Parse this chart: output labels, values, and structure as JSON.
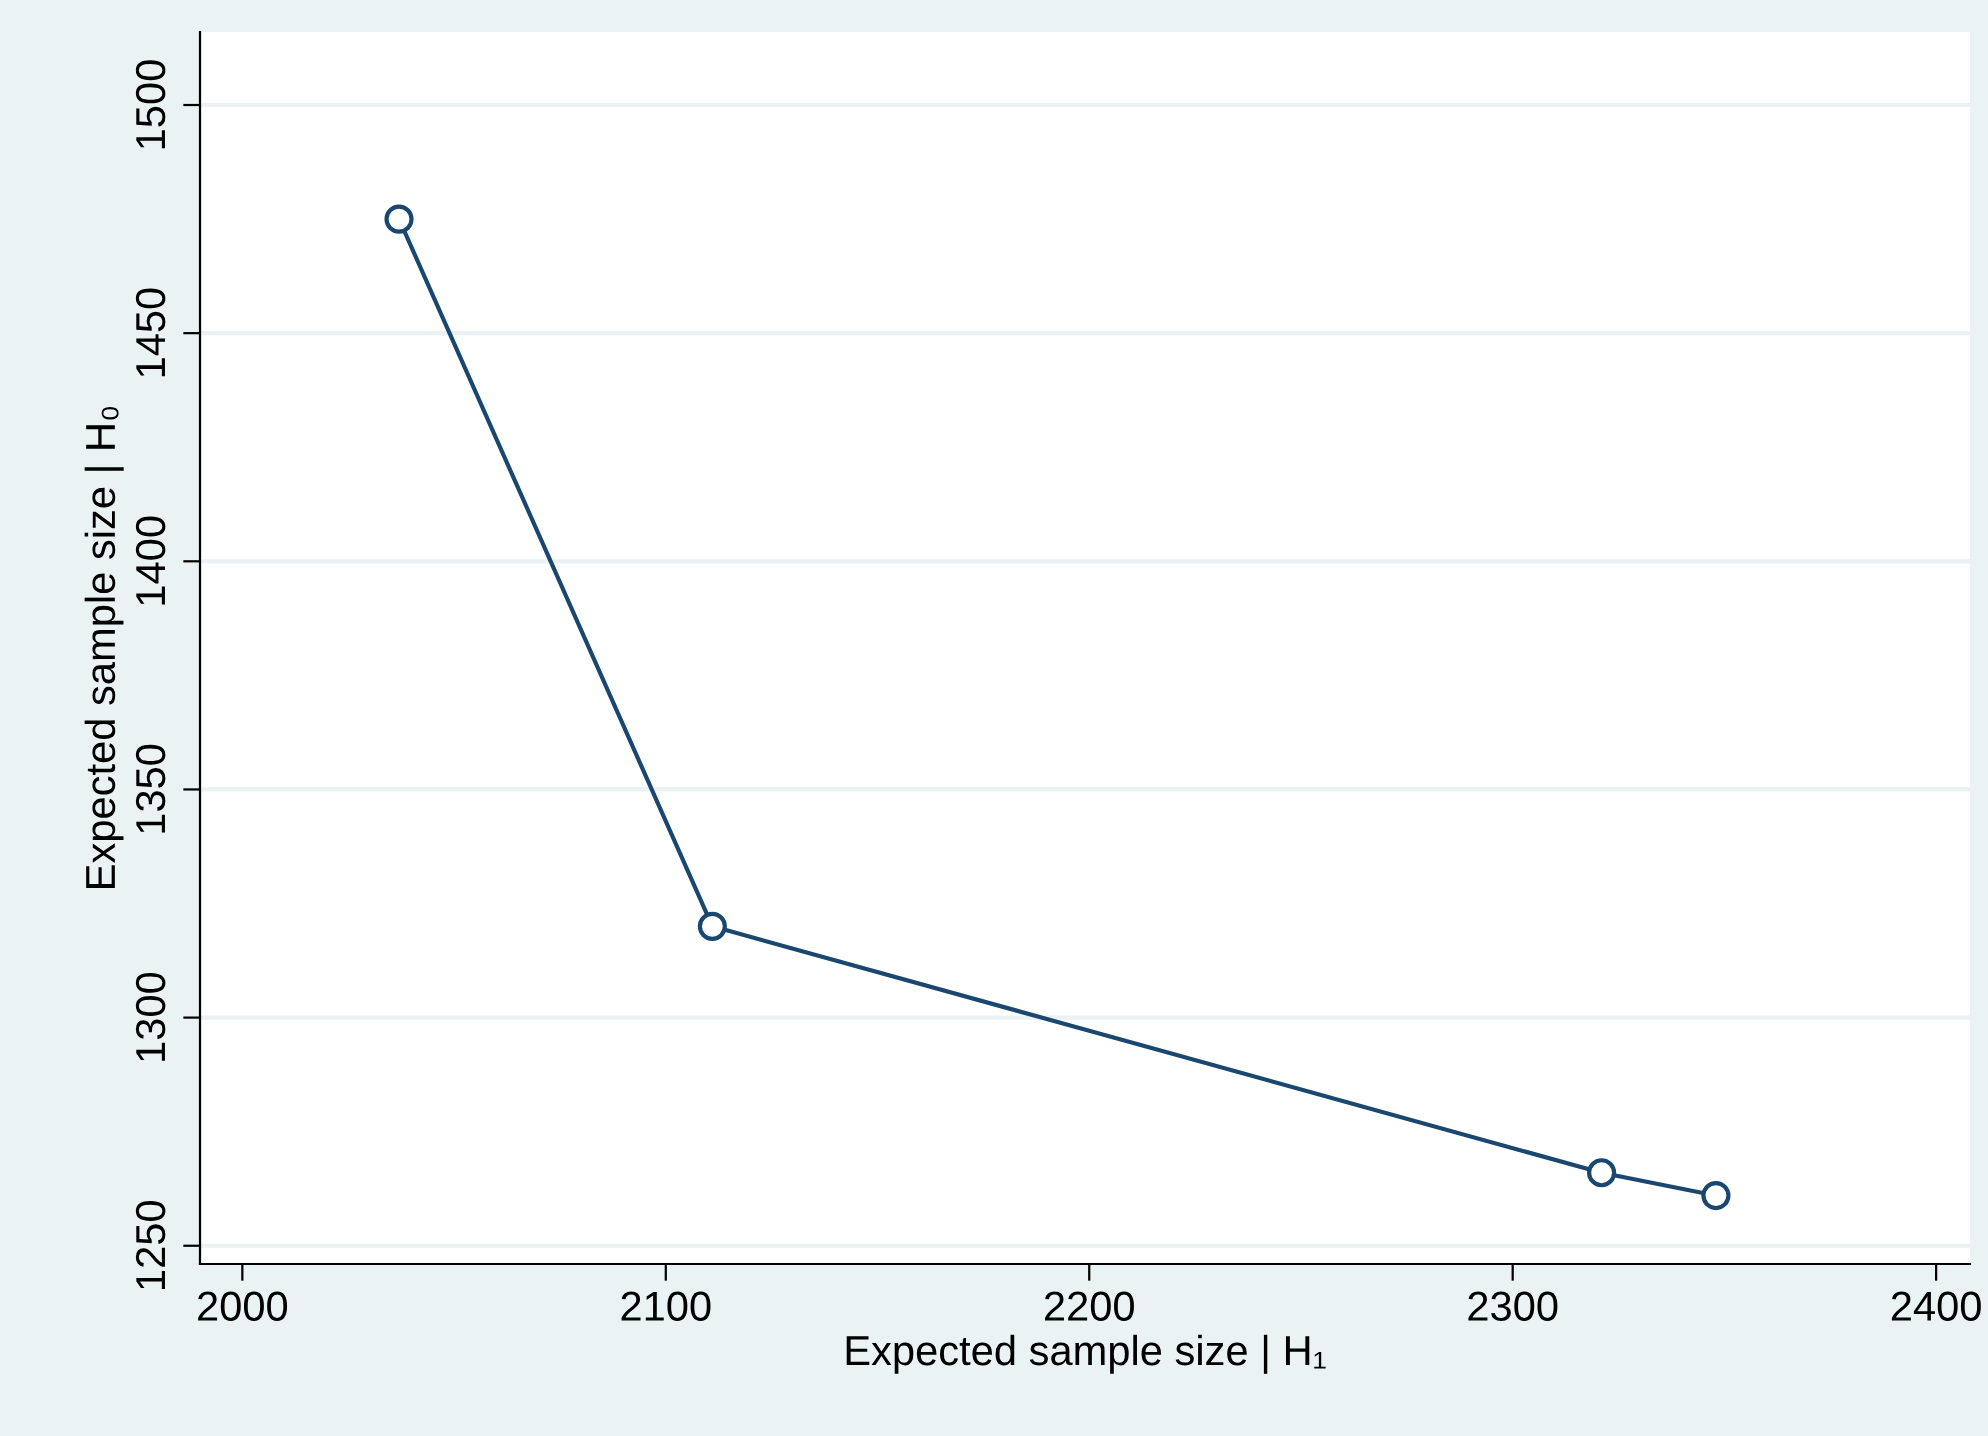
{
  "chart_data": {
    "type": "line",
    "xlabel": "Expected sample size | H₁",
    "ylabel": "Expected sample size | H₀",
    "x": [
      2037,
      2111,
      2321,
      2348
    ],
    "series": [
      {
        "color": "#1a476f",
        "values": [
          1475,
          1320,
          1266,
          1261
        ]
      }
    ],
    "xlim": [
      1990,
      2408
    ],
    "ylim": [
      1246,
      1516
    ],
    "xticks": [
      2000,
      2100,
      2200,
      2300,
      2400
    ],
    "yticks": [
      1250,
      1300,
      1350,
      1400,
      1450,
      1500
    ],
    "grid": "y",
    "marker": "circle",
    "line_style": "solid",
    "legend": false
  }
}
